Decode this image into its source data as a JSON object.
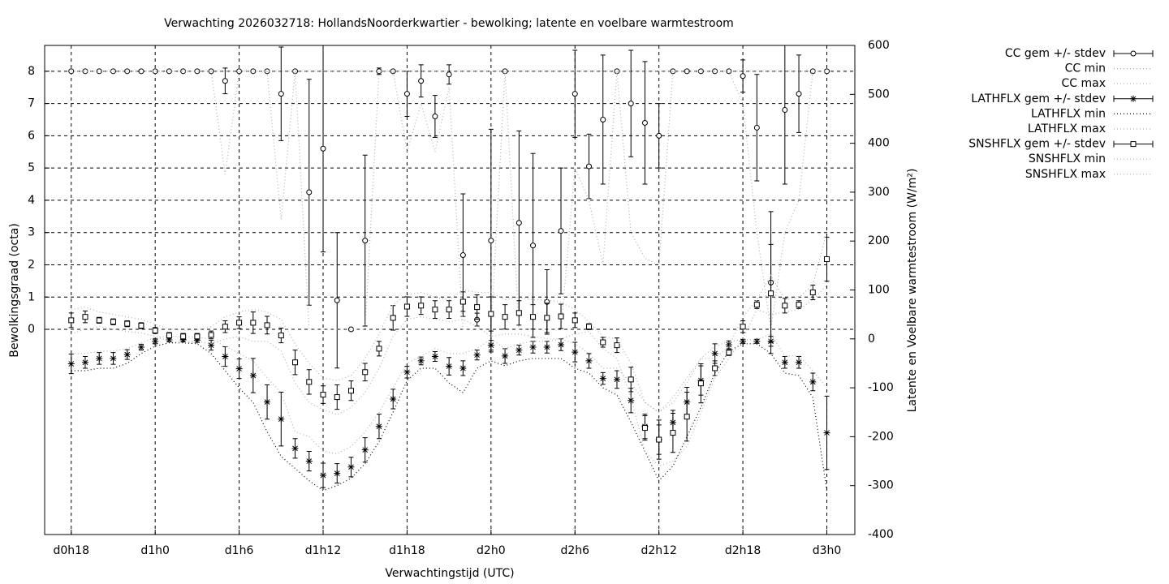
{
  "chart_data": {
    "type": "errorbar",
    "title": "Verwachting 2026032718: HollandsNoorderkwartier - bewolking; latente en voelbare warmtestroom",
    "xlabel": "Verwachtingstijd (UTC)",
    "ylabel": "Bewolkingsgraad (octa)",
    "y2label": "Latente en Voelbare warmtestroom (W/m²)",
    "grid": true,
    "legend": "outside-right",
    "xlim": [
      16.1,
      74
    ],
    "ylim": [
      -6.36,
      8.8
    ],
    "y2lim": [
      -400,
      600
    ],
    "xticks": [
      {
        "value": 18,
        "label": "d0h18"
      },
      {
        "value": 24,
        "label": "d1h0"
      },
      {
        "value": 30,
        "label": "d1h6"
      },
      {
        "value": 36,
        "label": "d1h12"
      },
      {
        "value": 42,
        "label": "d1h18"
      },
      {
        "value": 48,
        "label": "d2h0"
      },
      {
        "value": 54,
        "label": "d2h6"
      },
      {
        "value": 60,
        "label": "d2h12"
      },
      {
        "value": 66,
        "label": "d2h18"
      },
      {
        "value": 72,
        "label": "d3h0"
      }
    ],
    "yticks": [
      0,
      1,
      2,
      3,
      4,
      5,
      6,
      7,
      8
    ],
    "y2ticks": [
      -400,
      -300,
      -200,
      -100,
      0,
      100,
      200,
      300,
      400,
      500,
      600
    ],
    "x": [
      18,
      19,
      20,
      21,
      22,
      23,
      24,
      25,
      26,
      27,
      28,
      29,
      30,
      31,
      32,
      33,
      34,
      35,
      36,
      37,
      38,
      39,
      40,
      41,
      42,
      43,
      44,
      45,
      46,
      47,
      48,
      49,
      50,
      51,
      52,
      53,
      54,
      55,
      56,
      57,
      58,
      59,
      60,
      61,
      62,
      63,
      64,
      65,
      66,
      67,
      68,
      69,
      70,
      71,
      72
    ],
    "series": [
      {
        "name": "CC gem +/- stdev",
        "style": "errorbars",
        "marker": "circle",
        "color": "#000000",
        "axis": "y",
        "values": [
          8,
          8,
          8,
          8,
          8,
          8,
          8,
          8,
          8,
          8,
          8,
          7.7,
          8,
          8,
          8,
          7.3,
          8,
          4.25,
          5.6,
          0.9,
          0,
          2.75,
          8,
          8,
          7.3,
          7.7,
          6.6,
          7.9,
          2.3,
          0.3,
          2.75,
          8,
          3.3,
          2.6,
          0.85,
          3.05,
          7.3,
          5.05,
          6.5,
          8,
          7,
          6.4,
          6,
          8,
          8,
          8,
          8,
          8,
          7.85,
          6.25,
          1.45,
          6.8,
          7.3,
          8,
          8
        ],
        "errors": [
          0,
          0,
          0,
          0,
          0,
          0,
          0,
          0,
          0,
          0,
          0,
          0.4,
          0,
          0,
          0,
          1.45,
          0,
          3.5,
          3.2,
          2.1,
          0,
          2.65,
          0.1,
          0,
          0.7,
          0.5,
          0.65,
          0.3,
          1.9,
          0.2,
          3.45,
          0,
          2.85,
          2.85,
          1,
          1.95,
          1.35,
          1,
          2,
          0,
          1.65,
          1.9,
          1,
          0,
          0,
          0,
          0,
          0,
          0.5,
          1.65,
          2.2,
          2.3,
          1.2,
          0,
          0
        ]
      },
      {
        "name": "CC min",
        "style": "dots",
        "color": "#b0b0b0",
        "axis": "y",
        "values": [
          8,
          8,
          8,
          8,
          8,
          8,
          8,
          8,
          8,
          8,
          8,
          4.8,
          8,
          8,
          8,
          3.4,
          8,
          0,
          0,
          0,
          0,
          0,
          8,
          8,
          5.5,
          7,
          5.5,
          7.5,
          0,
          0,
          0,
          8,
          0,
          0,
          0,
          0,
          5,
          4,
          2,
          8,
          3,
          2.2,
          2,
          8,
          8,
          8,
          8,
          8,
          7,
          3,
          0,
          3,
          4,
          8,
          8
        ]
      },
      {
        "name": "CC max",
        "style": "dots",
        "color": "#b0b0b0",
        "axis": "y",
        "values": [
          8,
          8,
          8,
          8,
          8,
          8,
          8,
          8,
          8,
          8,
          8,
          8,
          8,
          8,
          8,
          8,
          8,
          8,
          8,
          8,
          8,
          8,
          8,
          8,
          8,
          8,
          8,
          8,
          8,
          8,
          8,
          8,
          8,
          8,
          8,
          8,
          8,
          8,
          8,
          8,
          8,
          8,
          8,
          8,
          8,
          8,
          8,
          8,
          8,
          8,
          8,
          8,
          8,
          8,
          8
        ]
      },
      {
        "name": "LATHFLX gem +/- stdev",
        "style": "errorbars",
        "marker": "star",
        "color": "#000000",
        "axis": "y2",
        "values": [
          -51,
          -48,
          -40,
          -40,
          -32,
          -17,
          -5,
          -2,
          -2,
          -3,
          -13,
          -36,
          -61,
          -75,
          -129,
          -164,
          -224,
          -250,
          -279,
          -275,
          -262,
          -227,
          -179,
          -123,
          -68,
          -45,
          -36,
          -56,
          -60,
          -33,
          -13,
          -35,
          -23,
          -17,
          -17,
          -12,
          -27,
          -45,
          -81,
          -83,
          -126,
          -179,
          -206,
          -171,
          -129,
          -85,
          -30,
          -12,
          -5,
          -5,
          -5,
          -48,
          -48,
          -88,
          -192
        ],
        "errors": [
          20,
          12,
          12,
          12,
          10,
          6,
          5,
          4,
          4,
          4,
          10,
          20,
          20,
          35,
          35,
          55,
          20,
          20,
          25,
          20,
          20,
          25,
          25,
          20,
          12,
          8,
          10,
          18,
          15,
          10,
          10,
          15,
          10,
          12,
          12,
          12,
          20,
          15,
          12,
          18,
          25,
          25,
          40,
          25,
          30,
          30,
          20,
          8,
          4,
          4,
          10,
          12,
          12,
          18,
          75
        ]
      },
      {
        "name": "LATHFLX min",
        "style": "dots",
        "color": "#000000",
        "axis": "y2",
        "values": [
          -65,
          -65,
          -60,
          -60,
          -50,
          -30,
          -15,
          -8,
          -8,
          -10,
          -30,
          -65,
          -100,
          -130,
          -190,
          -240,
          -265,
          -290,
          -310,
          -300,
          -285,
          -255,
          -210,
          -150,
          -85,
          -60,
          -60,
          -90,
          -110,
          -60,
          -45,
          -55,
          -45,
          -40,
          -40,
          -40,
          -60,
          -70,
          -100,
          -115,
          -170,
          -230,
          -290,
          -260,
          -200,
          -140,
          -70,
          -25,
          -10,
          -10,
          -30,
          -70,
          -75,
          -120,
          -310
        ]
      },
      {
        "name": "LATHFLX max",
        "style": "dots",
        "color": "#b0b0b0",
        "axis": "y2",
        "values": [
          -30,
          -30,
          -25,
          -25,
          -20,
          -8,
          3,
          5,
          5,
          3,
          0,
          -15,
          -30,
          -45,
          -80,
          -110,
          -190,
          -200,
          -230,
          -235,
          -220,
          -190,
          -150,
          -100,
          -50,
          -35,
          -20,
          -30,
          -30,
          -20,
          0,
          -20,
          -10,
          -5,
          -5,
          0,
          -10,
          -30,
          -60,
          -60,
          -90,
          -130,
          -150,
          -120,
          -80,
          -40,
          -15,
          -5,
          -2,
          -2,
          10,
          -35,
          -35,
          -65,
          -100
        ]
      },
      {
        "name": "SNSHFLX gem +/- stdev",
        "style": "errorbars",
        "marker": "square",
        "color": "#000000",
        "axis": "y2",
        "values": [
          38,
          45,
          38,
          35,
          31,
          27,
          17,
          7,
          5,
          5,
          8,
          25,
          33,
          33,
          28,
          7,
          -48,
          -88,
          -114,
          -119,
          -106,
          -68,
          -20,
          43,
          66,
          68,
          60,
          60,
          76,
          65,
          51,
          45,
          53,
          45,
          43,
          46,
          38,
          25,
          -7,
          -13,
          -83,
          -182,
          -206,
          -192,
          -159,
          -91,
          -60,
          -28,
          25,
          70,
          93,
          68,
          70,
          95,
          163
        ],
        "errors": [
          15,
          12,
          6,
          6,
          6,
          6,
          6,
          6,
          6,
          6,
          8,
          12,
          12,
          22,
          18,
          15,
          25,
          25,
          18,
          25,
          20,
          18,
          15,
          25,
          20,
          18,
          18,
          18,
          20,
          25,
          35,
          25,
          25,
          25,
          30,
          25,
          15,
          6,
          10,
          15,
          25,
          25,
          30,
          40,
          50,
          40,
          15,
          6,
          12,
          8,
          100,
          15,
          8,
          15,
          45
        ]
      },
      {
        "name": "SNSHFLX min",
        "style": "dots",
        "color": "#b0b0b0",
        "axis": "y2",
        "values": [
          10,
          20,
          25,
          20,
          15,
          12,
          5,
          -5,
          -8,
          -5,
          -10,
          0,
          5,
          -5,
          -5,
          -25,
          -90,
          -130,
          -145,
          -155,
          -140,
          -110,
          -60,
          5,
          40,
          45,
          40,
          35,
          40,
          25,
          5,
          10,
          10,
          5,
          0,
          0,
          10,
          15,
          -20,
          -40,
          -120,
          -230,
          -260,
          -250,
          -220,
          -150,
          -80,
          -40,
          0,
          60,
          50,
          55,
          60,
          80,
          110
        ]
      },
      {
        "name": "SNSHFLX max",
        "style": "dots",
        "color": "#b0b0b0",
        "axis": "y2",
        "values": [
          60,
          65,
          55,
          50,
          45,
          40,
          30,
          20,
          18,
          18,
          25,
          45,
          55,
          60,
          55,
          40,
          -10,
          -50,
          -80,
          -85,
          -75,
          -40,
          10,
          70,
          90,
          95,
          85,
          80,
          100,
          95,
          95,
          80,
          85,
          80,
          80,
          75,
          60,
          35,
          5,
          0,
          -50,
          -130,
          -150,
          -130,
          -90,
          -40,
          -40,
          -15,
          45,
          80,
          130,
          80,
          85,
          110,
          220
        ]
      }
    ]
  }
}
